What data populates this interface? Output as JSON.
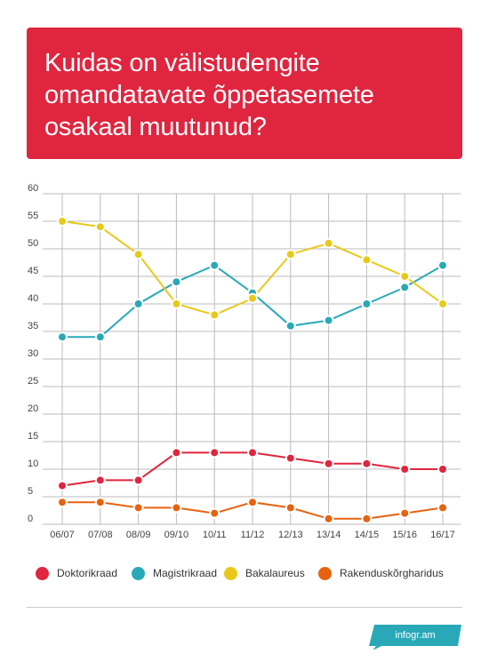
{
  "title": "Kuidas on välistudengite omandatavate õppetasemete osakaal muutunud?",
  "brand": "infogr.am",
  "colors": {
    "title_bg": "#e0253f",
    "grid": "#bbbbbb",
    "brand_bg": "#29a9b8"
  },
  "chart_data": {
    "type": "line",
    "categories": [
      "06/07",
      "07/08",
      "08/09",
      "09/10",
      "10/11",
      "11/12",
      "12/13",
      "13/14",
      "14/15",
      "15/16",
      "16/17"
    ],
    "ylim": [
      0,
      60
    ],
    "yticks": [
      "0",
      "5",
      "10",
      "15",
      "20",
      "25",
      "30",
      "35",
      "40",
      "45",
      "50",
      "55",
      "60"
    ],
    "grid": true,
    "legend_position": "bottom",
    "series": [
      {
        "name": "Doktorikraad",
        "color": "#e0253f",
        "values": [
          7,
          8,
          8,
          13,
          13,
          13,
          12,
          11,
          11,
          10,
          10
        ]
      },
      {
        "name": "Magistrikraad",
        "color": "#29a9b8",
        "values": [
          34,
          34,
          40,
          44,
          47,
          42,
          36,
          37,
          40,
          43,
          47
        ]
      },
      {
        "name": "Bakalaureus",
        "color": "#e8c91a",
        "values": [
          55,
          54,
          49,
          40,
          38,
          41,
          49,
          51,
          48,
          45,
          40
        ]
      },
      {
        "name": "Rakenduskõrgharidus",
        "color": "#e8620f",
        "values": [
          4,
          4,
          3,
          3,
          2,
          4,
          3,
          1,
          1,
          2,
          3
        ]
      }
    ]
  }
}
